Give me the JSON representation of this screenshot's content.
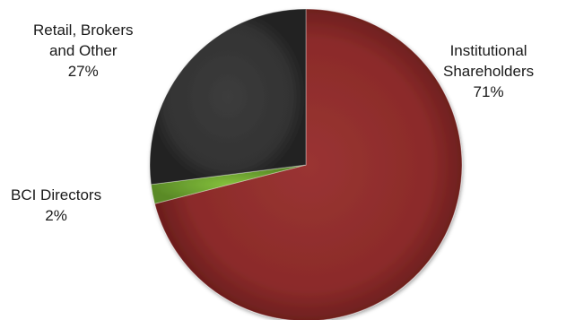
{
  "chart_data": {
    "type": "pie",
    "title": "",
    "slices": [
      {
        "name_lines": [
          "Institutional",
          "Shareholders"
        ],
        "pct_label": "71%",
        "value": 71,
        "color": "#8b2b2a",
        "label_position": "right"
      },
      {
        "name_lines": [
          "BCI Directors"
        ],
        "pct_label": "2%",
        "value": 2,
        "color": "#6ea531",
        "label_position": "left"
      },
      {
        "name_lines": [
          "Retail, Brokers",
          "and Other"
        ],
        "pct_label": "27%",
        "value": 27,
        "color": "#333333",
        "label_position": "top-left"
      }
    ],
    "start_angle_deg": 0,
    "direction": "clockwise",
    "legend": "none",
    "style": "3d-shaded"
  }
}
